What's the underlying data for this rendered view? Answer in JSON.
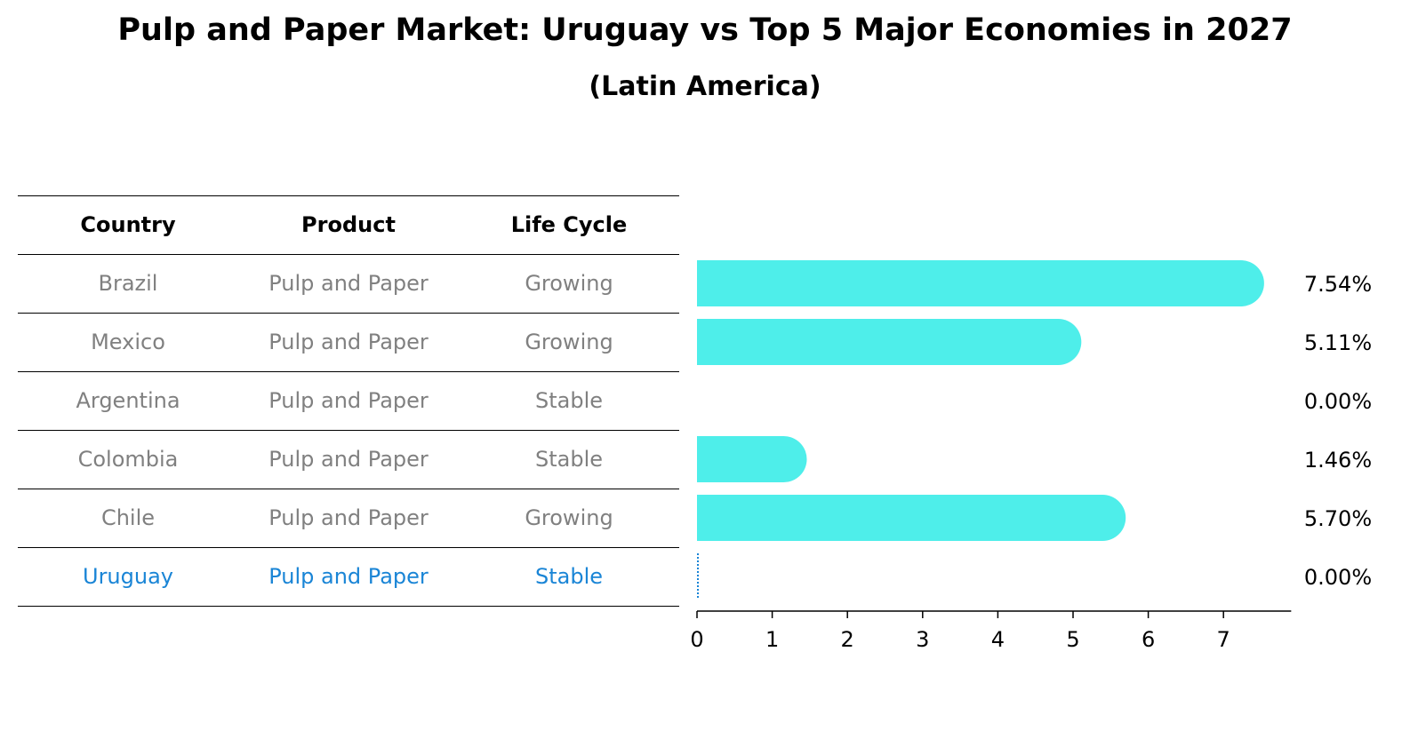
{
  "title": "Pulp and Paper Market: Uruguay vs Top 5 Major Economies in 2027",
  "subtitle": "(Latin America)",
  "table": {
    "headers": [
      "Country",
      "Product",
      "Life Cycle"
    ],
    "rows": [
      {
        "country": "Brazil",
        "product": "Pulp and Paper",
        "life_cycle": "Growing",
        "highlight": false
      },
      {
        "country": "Mexico",
        "product": "Pulp and Paper",
        "life_cycle": "Growing",
        "highlight": false
      },
      {
        "country": "Argentina",
        "product": "Pulp and Paper",
        "life_cycle": "Stable",
        "highlight": false
      },
      {
        "country": "Colombia",
        "product": "Pulp and Paper",
        "life_cycle": "Stable",
        "highlight": false
      },
      {
        "country": "Chile",
        "product": "Pulp and Paper",
        "life_cycle": "Growing",
        "highlight": false
      },
      {
        "country": "Uruguay",
        "product": "Pulp and Paper",
        "life_cycle": "Stable",
        "highlight": true
      }
    ]
  },
  "chart_data": {
    "type": "bar",
    "orientation": "horizontal",
    "categories": [
      "Brazil",
      "Mexico",
      "Argentina",
      "Colombia",
      "Chile",
      "Uruguay"
    ],
    "values": [
      7.54,
      5.11,
      0.0,
      1.46,
      5.7,
      0.0
    ],
    "value_labels": [
      "7.54%",
      "5.11%",
      "0.00%",
      "1.46%",
      "5.70%",
      "0.00%"
    ],
    "xticks": [
      0,
      1,
      2,
      3,
      4,
      5,
      6,
      7
    ],
    "xlim": [
      0,
      7.9
    ],
    "grid": false,
    "bar_color": "#4eeeea",
    "highlight_color": "#1a85d6",
    "text_color_dim": "#808080"
  }
}
